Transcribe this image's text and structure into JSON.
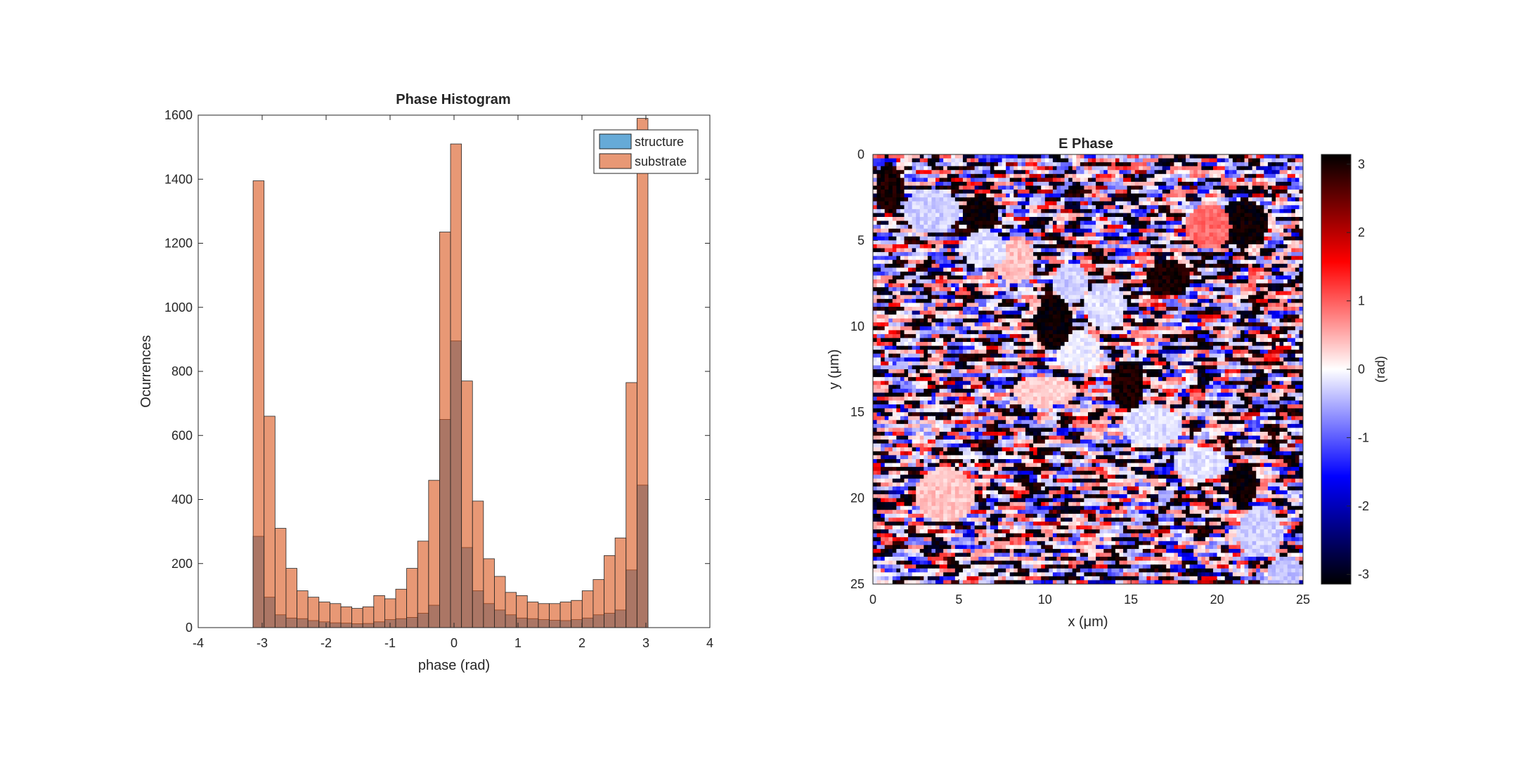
{
  "colors": {
    "structure": "#0072BD",
    "substrate": "#D95319",
    "axis": "#262626"
  },
  "chart_data": [
    {
      "type": "bar",
      "subtype": "histogram",
      "title": "Phase Histogram",
      "xlabel": "phase (rad)",
      "ylabel": "Ocurrences",
      "xlim": [
        -4,
        4
      ],
      "ylim": [
        0,
        1600
      ],
      "xticks": [
        "-4",
        "-3",
        "-2",
        "-1",
        "0",
        "1",
        "2",
        "3",
        "4"
      ],
      "yticks": [
        "0",
        "200",
        "400",
        "600",
        "800",
        "1000",
        "1200",
        "1400",
        "1600"
      ],
      "grid": false,
      "legend_position": "top-right",
      "bin_edges": [
        -3.1416,
        -2.9701,
        -2.7986,
        -2.6271,
        -2.4556,
        -2.2841,
        -2.1126,
        -1.9411,
        -1.7696,
        -1.5981,
        -1.4266,
        -1.2551,
        -1.0836,
        -0.9121,
        -0.7406,
        -0.5691,
        -0.3976,
        -0.2261,
        -0.0546,
        0.1169,
        0.2884,
        0.4599,
        0.6314,
        0.8029,
        0.9744,
        1.1459,
        1.3174,
        1.4889,
        1.6604,
        1.8319,
        2.0034,
        2.1749,
        2.3464,
        2.5179,
        2.6894,
        2.8609,
        3.0324,
        3.2039
      ],
      "series": [
        {
          "name": "structure",
          "values": [
            285,
            95,
            40,
            30,
            28,
            22,
            18,
            15,
            14,
            12,
            13,
            18,
            25,
            28,
            32,
            45,
            70,
            650,
            895,
            250,
            115,
            75,
            55,
            40,
            30,
            28,
            25,
            23,
            22,
            25,
            30,
            40,
            45,
            55,
            180,
            445,
            0
          ]
        },
        {
          "name": "substrate",
          "values": [
            1395,
            660,
            310,
            185,
            115,
            95,
            80,
            75,
            65,
            60,
            65,
            100,
            90,
            120,
            185,
            270,
            460,
            1235,
            1510,
            770,
            395,
            215,
            160,
            110,
            100,
            80,
            75,
            75,
            80,
            85,
            115,
            150,
            225,
            280,
            765,
            1590,
            0
          ]
        }
      ]
    },
    {
      "type": "heatmap",
      "title": "E Phase",
      "xlabel": "x (μm)",
      "ylabel": "y (μm)",
      "xlim": [
        0,
        25
      ],
      "ylim": [
        0,
        25
      ],
      "xticks": [
        "0",
        "5",
        "10",
        "15",
        "20",
        "25"
      ],
      "yticks": [
        "0",
        "5",
        "10",
        "15",
        "20",
        "25"
      ],
      "colorbar_label": "(rad)",
      "colorbar_range": [
        -3.1416,
        3.1416
      ],
      "colorbar_ticks": [
        "3",
        "2",
        "1",
        "0",
        "-1",
        "-2",
        "-3"
      ],
      "colormap": [
        "#000000",
        "#0000ff",
        "#ffffff",
        "#ff0000",
        "#000000"
      ]
    }
  ]
}
